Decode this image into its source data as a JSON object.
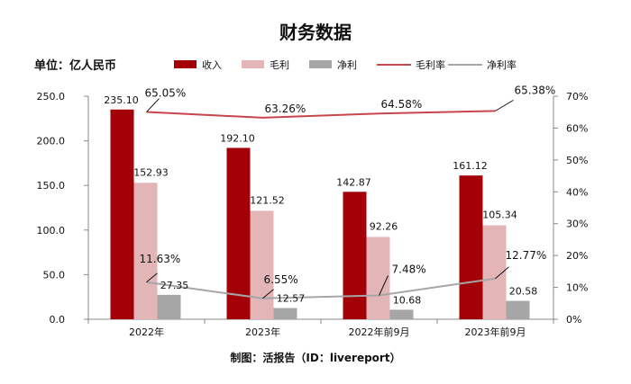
{
  "chart_data": {
    "type": "bar",
    "title": "财务数据",
    "unit_label": "单位：亿人民币",
    "source": "制图：活报告（ID：livereport）",
    "categories": [
      "2022年",
      "2023年",
      "2022年前9月",
      "2023年前9月"
    ],
    "series": [
      {
        "name": "收入",
        "kind": "bar",
        "axis": "left",
        "color": "#A30008",
        "values": [
          235.1,
          192.1,
          142.87,
          161.12
        ],
        "labels": [
          "235.10",
          "192.10",
          "142.87",
          "161.12"
        ]
      },
      {
        "name": "毛利",
        "kind": "bar",
        "axis": "left",
        "color": "#E3B5B7",
        "values": [
          152.93,
          121.52,
          92.26,
          105.34
        ],
        "labels": [
          "152.93",
          "121.52",
          "92.26",
          "105.34"
        ]
      },
      {
        "name": "净利",
        "kind": "bar",
        "axis": "left",
        "color": "#A6A6A6",
        "values": [
          27.35,
          12.57,
          10.68,
          20.58
        ],
        "labels": [
          "27.35",
          "12.57",
          "10.68",
          "20.58"
        ]
      },
      {
        "name": "毛利率",
        "kind": "line",
        "axis": "right",
        "color": "#C8474C",
        "values": [
          65.05,
          63.26,
          64.58,
          65.38
        ],
        "labels": [
          "65.05%",
          "63.26%",
          "64.58%",
          "65.38%"
        ]
      },
      {
        "name": "净利率",
        "kind": "line",
        "axis": "right",
        "color": "#A6A6A6",
        "values": [
          11.63,
          6.55,
          7.48,
          12.77
        ],
        "labels": [
          "11.63%",
          "6.55%",
          "7.48%",
          "12.77%"
        ]
      }
    ],
    "y_left": {
      "min": 0,
      "max": 250,
      "ticks": [
        "0.0",
        "50.0",
        "100.0",
        "150.0",
        "200.0",
        "250.0"
      ]
    },
    "y_right": {
      "min": 0,
      "max": 70,
      "ticks": [
        "0%",
        "10%",
        "20%",
        "30%",
        "40%",
        "50%",
        "60%",
        "70%"
      ]
    },
    "grid": false,
    "legend_position": "top"
  }
}
